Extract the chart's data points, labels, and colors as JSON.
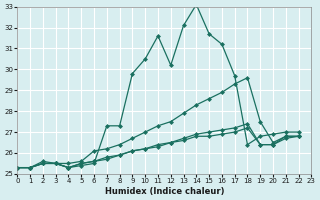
{
  "xlabel": "Humidex (Indice chaleur)",
  "ylabel": "",
  "xlim": [
    0,
    23
  ],
  "ylim": [
    25,
    33
  ],
  "yticks": [
    25,
    26,
    27,
    28,
    29,
    30,
    31,
    32,
    33
  ],
  "xticks": [
    0,
    1,
    2,
    3,
    4,
    5,
    6,
    7,
    8,
    9,
    10,
    11,
    12,
    13,
    14,
    15,
    16,
    17,
    18,
    19,
    20,
    21,
    22,
    23
  ],
  "background_color": "#d8eef0",
  "grid_color": "#ffffff",
  "line_color": "#1a7060",
  "series": [
    [
      25.3,
      25.3,
      25.5,
      25.5,
      25.3,
      25.4,
      25.5,
      27.3,
      27.3,
      29.8,
      30.5,
      31.6,
      30.2,
      32.1,
      33.1,
      31.7,
      31.2,
      29.7,
      26.4,
      26.8,
      26.9,
      27.0,
      27.0
    ],
    [
      25.3,
      25.3,
      25.6,
      25.5,
      25.5,
      25.6,
      26.1,
      26.2,
      26.4,
      26.7,
      27.0,
      27.3,
      27.5,
      27.9,
      28.3,
      28.6,
      28.9,
      29.3,
      29.6,
      27.5,
      26.5,
      26.8,
      26.8
    ],
    [
      25.3,
      25.3,
      25.5,
      25.5,
      25.3,
      25.5,
      25.6,
      25.7,
      25.9,
      26.1,
      26.2,
      26.4,
      26.5,
      26.7,
      26.9,
      27.0,
      27.1,
      27.2,
      27.4,
      26.4,
      26.4,
      26.7,
      26.8
    ],
    [
      25.3,
      25.3,
      25.5,
      25.5,
      25.3,
      25.5,
      25.6,
      25.8,
      25.9,
      26.1,
      26.2,
      26.3,
      26.5,
      26.6,
      26.8,
      26.8,
      26.9,
      27.0,
      27.2,
      26.4,
      26.4,
      26.8,
      26.8
    ]
  ],
  "x_values": [
    0,
    1,
    2,
    3,
    4,
    5,
    6,
    7,
    8,
    9,
    10,
    11,
    12,
    13,
    14,
    15,
    16,
    17,
    18,
    19,
    20,
    21,
    22
  ]
}
